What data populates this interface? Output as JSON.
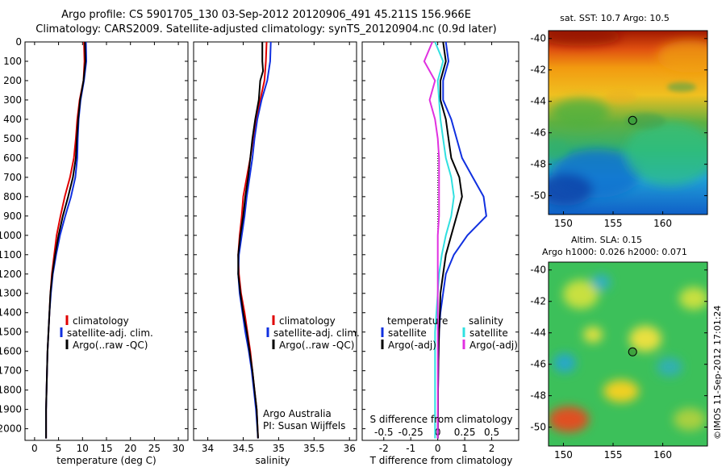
{
  "header": {
    "title_line1": "Argo profile: CS 5901705_130 03-Sep-2012 20120906_491 45.211S 156.966E",
    "title_line2": "Climatology: CARS2009. Satellite-adjusted climatology: synTS_20120904.nc (0.9d later)"
  },
  "colors": {
    "climatology": "#e00000",
    "satellite": "#1030e0",
    "argo": "#000000",
    "sal_satellite": "#30e0e0",
    "sal_argo": "#e030e0"
  },
  "depth_axis": {
    "ticks": [
      "0",
      "100",
      "200",
      "300",
      "400",
      "500",
      "600",
      "700",
      "800",
      "900",
      "1000",
      "1100",
      "1200",
      "1300",
      "1400",
      "1500",
      "1600",
      "1700",
      "1800",
      "1900",
      "2000"
    ]
  },
  "chart_data": [
    {
      "type": "line",
      "name": "temperature profile",
      "xlabel": "temperature (deg C)",
      "xlim": [
        -2,
        32
      ],
      "ylim": [
        2060,
        0
      ],
      "xticks": [
        "0",
        "5",
        "10",
        "15",
        "20",
        "25",
        "30"
      ],
      "legend": [
        "climatology",
        "satellite-adj. clim.",
        "Argo(..raw -QC)"
      ],
      "series": [
        {
          "name": "climatology",
          "color_key": "climatology",
          "points": [
            [
              10.3,
              0
            ],
            [
              10.4,
              100
            ],
            [
              10.2,
              200
            ],
            [
              9.4,
              300
            ],
            [
              8.9,
              400
            ],
            [
              8.6,
              500
            ],
            [
              8.2,
              600
            ],
            [
              7.4,
              700
            ],
            [
              6.3,
              800
            ],
            [
              5.4,
              900
            ],
            [
              4.6,
              1000
            ],
            [
              4.1,
              1100
            ],
            [
              3.6,
              1200
            ],
            [
              3.3,
              1300
            ],
            [
              3.1,
              1400
            ],
            [
              2.9,
              1500
            ],
            [
              2.7,
              1600
            ],
            [
              2.6,
              1700
            ],
            [
              2.5,
              1800
            ],
            [
              2.4,
              1900
            ],
            [
              2.4,
              2050
            ]
          ]
        },
        {
          "name": "satellite-adj. clim.",
          "color_key": "satellite",
          "points": [
            [
              10.7,
              0
            ],
            [
              10.8,
              100
            ],
            [
              10.3,
              200
            ],
            [
              9.6,
              300
            ],
            [
              9.2,
              400
            ],
            [
              9.0,
              500
            ],
            [
              8.9,
              600
            ],
            [
              8.5,
              700
            ],
            [
              7.6,
              800
            ],
            [
              6.4,
              900
            ],
            [
              5.3,
              1000
            ],
            [
              4.5,
              1100
            ],
            [
              3.8,
              1200
            ],
            [
              3.4,
              1300
            ],
            [
              3.1,
              1400
            ],
            [
              2.9,
              1500
            ],
            [
              2.7,
              1600
            ],
            [
              2.6,
              1700
            ],
            [
              2.5,
              1800
            ],
            [
              2.4,
              1900
            ],
            [
              2.4,
              2050
            ]
          ]
        },
        {
          "name": "Argo(..raw -QC)",
          "color_key": "argo",
          "points": [
            [
              10.5,
              0
            ],
            [
              10.6,
              100
            ],
            [
              10.2,
              200
            ],
            [
              9.5,
              300
            ],
            [
              9.1,
              400
            ],
            [
              8.8,
              500
            ],
            [
              8.6,
              600
            ],
            [
              8.0,
              700
            ],
            [
              7.0,
              800
            ],
            [
              5.9,
              900
            ],
            [
              5.0,
              1000
            ],
            [
              4.3,
              1100
            ],
            [
              3.7,
              1200
            ],
            [
              3.3,
              1300
            ],
            [
              3.1,
              1400
            ],
            [
              2.9,
              1500
            ],
            [
              2.7,
              1600
            ],
            [
              2.6,
              1700
            ],
            [
              2.5,
              1800
            ],
            [
              2.4,
              1900
            ],
            [
              2.4,
              2050
            ]
          ]
        }
      ]
    },
    {
      "type": "line",
      "name": "salinity profile",
      "xlabel": "salinity",
      "xlim": [
        33.8,
        36.1
      ],
      "ylim": [
        2060,
        0
      ],
      "xticks": [
        "34",
        "34.5",
        "35",
        "35.5",
        "36"
      ],
      "legend": [
        "climatology",
        "satellite-adj. clim.",
        "Argo(..raw -QC)"
      ],
      "annotation": [
        "Argo Australia",
        "PI: Susan Wijffels"
      ],
      "series": [
        {
          "name": "climatology",
          "color_key": "climatology",
          "points": [
            [
              34.83,
              0
            ],
            [
              34.82,
              100
            ],
            [
              34.8,
              200
            ],
            [
              34.74,
              300
            ],
            [
              34.68,
              400
            ],
            [
              34.64,
              500
            ],
            [
              34.6,
              600
            ],
            [
              34.55,
              700
            ],
            [
              34.5,
              800
            ],
            [
              34.48,
              900
            ],
            [
              34.45,
              1000
            ],
            [
              34.43,
              1100
            ],
            [
              34.44,
              1200
            ],
            [
              34.47,
              1300
            ],
            [
              34.52,
              1400
            ],
            [
              34.56,
              1500
            ],
            [
              34.6,
              1600
            ],
            [
              34.63,
              1700
            ],
            [
              34.66,
              1800
            ],
            [
              34.69,
              1900
            ],
            [
              34.71,
              2050
            ]
          ]
        },
        {
          "name": "satellite-adj. clim.",
          "color_key": "satellite",
          "points": [
            [
              34.89,
              0
            ],
            [
              34.88,
              100
            ],
            [
              34.84,
              200
            ],
            [
              34.76,
              300
            ],
            [
              34.7,
              400
            ],
            [
              34.66,
              500
            ],
            [
              34.63,
              600
            ],
            [
              34.59,
              700
            ],
            [
              34.55,
              800
            ],
            [
              34.52,
              900
            ],
            [
              34.48,
              1000
            ],
            [
              34.44,
              1100
            ],
            [
              34.43,
              1200
            ],
            [
              34.45,
              1300
            ],
            [
              34.49,
              1400
            ],
            [
              34.53,
              1500
            ],
            [
              34.58,
              1600
            ],
            [
              34.62,
              1700
            ],
            [
              34.65,
              1800
            ],
            [
              34.68,
              1900
            ],
            [
              34.71,
              2050
            ]
          ]
        },
        {
          "name": "Argo(..raw -QC)",
          "color_key": "argo",
          "points": [
            [
              34.77,
              0
            ],
            [
              34.77,
              100
            ],
            [
              34.78,
              150
            ],
            [
              34.74,
              200
            ],
            [
              34.72,
              300
            ],
            [
              34.67,
              400
            ],
            [
              34.63,
              500
            ],
            [
              34.6,
              600
            ],
            [
              34.57,
              700
            ],
            [
              34.53,
              800
            ],
            [
              34.5,
              900
            ],
            [
              34.46,
              1000
            ],
            [
              34.43,
              1100
            ],
            [
              34.43,
              1200
            ],
            [
              34.46,
              1300
            ],
            [
              34.5,
              1400
            ],
            [
              34.55,
              1500
            ],
            [
              34.59,
              1600
            ],
            [
              34.63,
              1700
            ],
            [
              34.66,
              1800
            ],
            [
              34.69,
              1900
            ],
            [
              34.71,
              2050
            ]
          ]
        }
      ]
    },
    {
      "type": "line",
      "name": "difference from climatology",
      "xlabel": "T difference from climatology",
      "xlabel_top": "S difference from climatology",
      "xlim": [
        -2.8,
        3.0
      ],
      "ylim": [
        2060,
        0
      ],
      "xticks": [
        "-2",
        "-1",
        "0",
        "1",
        "2"
      ],
      "s_ticks": [
        "-0.5",
        "-0.25",
        "0",
        "0.25",
        "0.5"
      ],
      "legend_left_title": "temperature",
      "legend_right_title": "salinity",
      "legend_left": [
        "satellite",
        "Argo(-adj)"
      ],
      "legend_right": [
        "satellite",
        "Argo(-adj)"
      ],
      "series": [
        {
          "name": "temperature satellite",
          "color_key": "satellite",
          "points": [
            [
              0.3,
              0
            ],
            [
              0.4,
              100
            ],
            [
              0.2,
              200
            ],
            [
              0.2,
              300
            ],
            [
              0.5,
              400
            ],
            [
              0.7,
              500
            ],
            [
              0.9,
              600
            ],
            [
              1.3,
              700
            ],
            [
              1.7,
              800
            ],
            [
              1.8,
              900
            ],
            [
              1.1,
              1000
            ],
            [
              0.6,
              1100
            ],
            [
              0.3,
              1200
            ],
            [
              0.2,
              1300
            ],
            [
              0.1,
              1400
            ],
            [
              0.05,
              1500
            ],
            [
              0.03,
              1600
            ],
            [
              0.02,
              1700
            ],
            [
              0.01,
              1800
            ],
            [
              0.01,
              1900
            ],
            [
              0.0,
              2050
            ]
          ]
        },
        {
          "name": "temperature Argo(-adj)",
          "color_key": "argo",
          "points": [
            [
              0.2,
              0
            ],
            [
              0.3,
              100
            ],
            [
              0.1,
              200
            ],
            [
              0.1,
              300
            ],
            [
              0.3,
              400
            ],
            [
              0.4,
              500
            ],
            [
              0.5,
              600
            ],
            [
              0.8,
              700
            ],
            [
              0.9,
              800
            ],
            [
              0.7,
              900
            ],
            [
              0.5,
              1000
            ],
            [
              0.3,
              1100
            ],
            [
              0.2,
              1200
            ],
            [
              0.1,
              1300
            ],
            [
              0.08,
              1400
            ],
            [
              0.05,
              1500
            ],
            [
              0.03,
              1600
            ],
            [
              0.02,
              1700
            ],
            [
              0.01,
              1800
            ],
            [
              0.01,
              1900
            ],
            [
              0.0,
              2050
            ]
          ]
        },
        {
          "name": "salinity satellite",
          "color_key": "sal_satellite",
          "points": [
            [
              -0.1,
              0
            ],
            [
              0.2,
              100
            ],
            [
              0.0,
              200
            ],
            [
              0.05,
              300
            ],
            [
              0.1,
              400
            ],
            [
              0.2,
              500
            ],
            [
              0.3,
              600
            ],
            [
              0.5,
              700
            ],
            [
              0.6,
              800
            ],
            [
              0.5,
              900
            ],
            [
              0.3,
              1000
            ],
            [
              0.15,
              1100
            ],
            [
              0.05,
              1200
            ],
            [
              0.0,
              1300
            ],
            [
              -0.05,
              1400
            ],
            [
              -0.1,
              1500
            ],
            [
              -0.1,
              1600
            ],
            [
              -0.1,
              1700
            ],
            [
              -0.1,
              1800
            ],
            [
              -0.1,
              1900
            ],
            [
              -0.1,
              2050
            ]
          ]
        },
        {
          "name": "salinity Argo(-adj)",
          "color_key": "sal_argo",
          "points": [
            [
              -0.2,
              0
            ],
            [
              -0.5,
              100
            ],
            [
              -0.1,
              200
            ],
            [
              -0.3,
              300
            ],
            [
              -0.1,
              400
            ],
            [
              0.0,
              500
            ],
            [
              0.05,
              600
            ],
            [
              0.05,
              700
            ],
            [
              0.05,
              800
            ],
            [
              0.05,
              900
            ],
            [
              0.0,
              1000
            ],
            [
              0.0,
              1100
            ],
            [
              0.0,
              1200
            ],
            [
              0.0,
              1300
            ],
            [
              0.0,
              1400
            ],
            [
              0.0,
              1500
            ],
            [
              0.0,
              1600
            ],
            [
              0.0,
              1700
            ],
            [
              0.0,
              1800
            ],
            [
              0.0,
              1900
            ],
            [
              0.0,
              2050
            ]
          ]
        }
      ]
    },
    {
      "type": "heatmap",
      "name": "satellite SST map",
      "title": "sat. SST: 10.7 Argo: 10.5",
      "xticks": [
        "150",
        "155",
        "160"
      ],
      "yticks": [
        "-40",
        "-42",
        "-44",
        "-46",
        "-48",
        "-50"
      ],
      "xlim": [
        148.5,
        164.5
      ],
      "ylim": [
        -51.2,
        -39.5
      ],
      "marker": {
        "lon": 156.966,
        "lat": -45.211
      }
    },
    {
      "type": "heatmap",
      "name": "altimetry SLA map",
      "title_line1": "Altim. SLA: 0.15",
      "title_line2": "Argo h1000: 0.026 h2000: 0.071",
      "xticks": [
        "150",
        "155",
        "160"
      ],
      "yticks": [
        "-40",
        "-42",
        "-44",
        "-46",
        "-48",
        "-50"
      ],
      "xlim": [
        148.5,
        164.5
      ],
      "ylim": [
        -51.2,
        -39.5
      ],
      "marker": {
        "lon": 156.966,
        "lat": -45.211
      }
    }
  ],
  "side_label": "©IMOS 11-Sep-2012 17:01:24"
}
